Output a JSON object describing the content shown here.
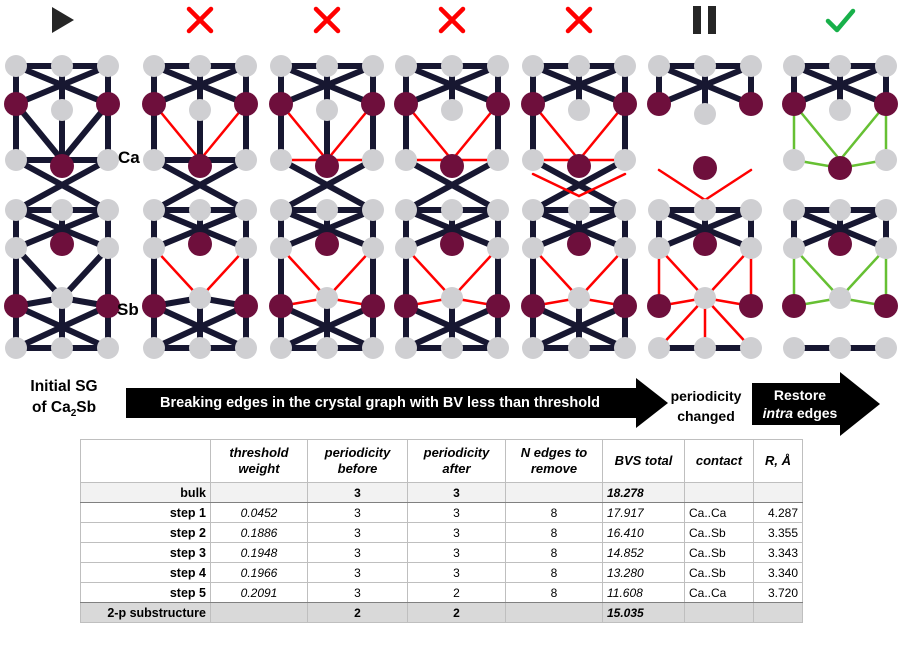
{
  "colors": {
    "bond": "#171731",
    "removed_bond": "#ff0000",
    "restored_bond": "#66c033",
    "ca_atom": "#cfcfd2",
    "sb_atom": "#6e0f3c",
    "fail_mark": "#ff0000",
    "ok_mark": "#18b04a"
  },
  "status_icons": [
    "play-icon",
    "cross-icon",
    "cross-icon",
    "cross-icon",
    "cross-icon",
    "pause-icon",
    "check-icon"
  ],
  "labels": {
    "ca": "Ca",
    "sb": "Sb",
    "initial_line1": "Initial SG",
    "initial_line2_prefix": "of Ca",
    "initial_line2_sub": "2",
    "initial_line2_suffix": "Sb",
    "arrow_text": "Breaking edges in the crystal graph with BV less than threshold",
    "periodicity_line1": "periodicity",
    "periodicity_line2": "changed",
    "restore_line1": "Restore",
    "restore_line2_italic": "intra",
    "restore_line2_rest": " edges"
  },
  "table": {
    "headers": [
      "threshold weight",
      "periodicity before",
      "periodicity after",
      "N edges to remove",
      "BVS total",
      "contact",
      "R, Å"
    ],
    "rows": [
      {
        "label": "bulk",
        "threshold": "",
        "before": "3",
        "after": "3",
        "n_edges": "",
        "bvs": "18.278",
        "contact": "",
        "r": ""
      },
      {
        "label": "step 1",
        "threshold": "0.0452",
        "before": "3",
        "after": "3",
        "n_edges": "8",
        "bvs": "17.917",
        "contact": "Ca..Ca",
        "r": "4.287"
      },
      {
        "label": "step 2",
        "threshold": "0.1886",
        "before": "3",
        "after": "3",
        "n_edges": "8",
        "bvs": "16.410",
        "contact": "Ca..Sb",
        "r": "3.355"
      },
      {
        "label": "step 3",
        "threshold": "0.1948",
        "before": "3",
        "after": "3",
        "n_edges": "8",
        "bvs": "14.852",
        "contact": "Ca..Sb",
        "r": "3.343"
      },
      {
        "label": "step 4",
        "threshold": "0.1966",
        "before": "3",
        "after": "3",
        "n_edges": "8",
        "bvs": "13.280",
        "contact": "Ca..Sb",
        "r": "3.340"
      },
      {
        "label": "step 5",
        "threshold": "0.2091",
        "before": "3",
        "after": "2",
        "n_edges": "8",
        "bvs": "11.608",
        "contact": "Ca..Ca",
        "r": "3.720"
      },
      {
        "label": "2-p substructure",
        "threshold": "",
        "before": "2",
        "after": "2",
        "n_edges": "",
        "bvs": "15.035",
        "contact": "",
        "r": ""
      }
    ]
  }
}
